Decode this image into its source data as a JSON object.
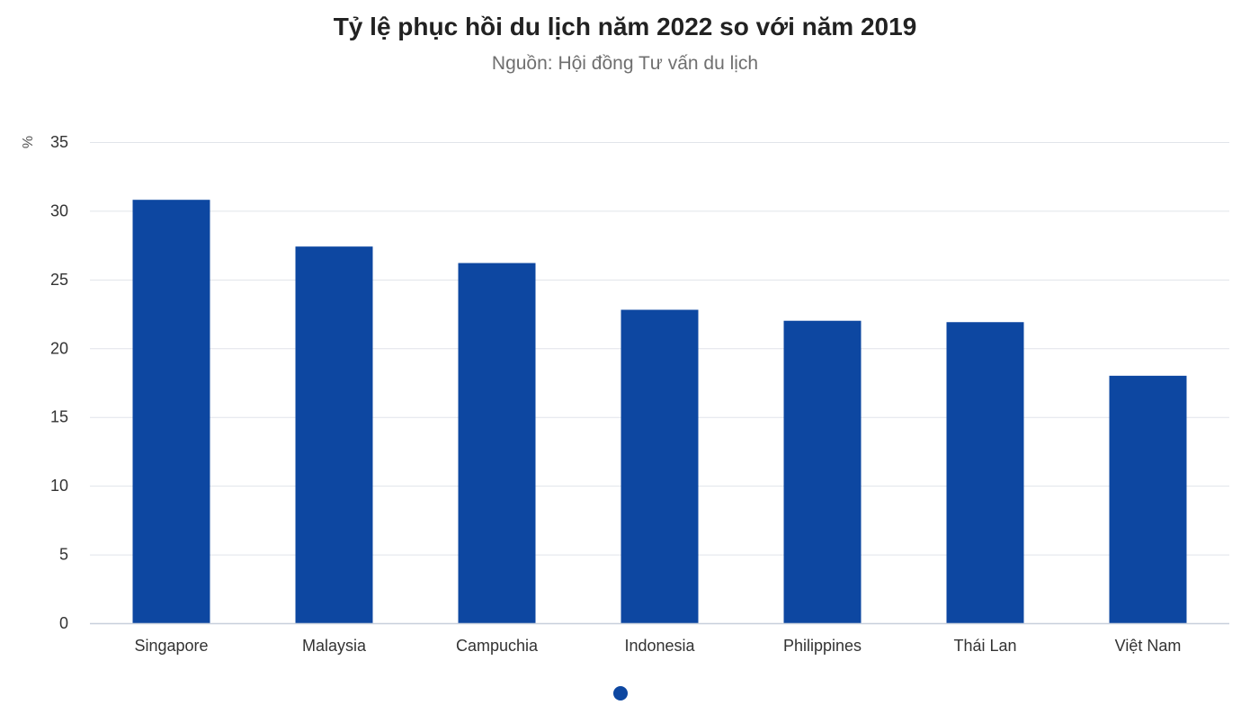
{
  "chart_data": {
    "type": "bar",
    "title": "Tỷ lệ phục hồi du lịch năm 2022 so với năm 2019",
    "subtitle": "Nguồn: Hội đồng Tư vấn du lịch",
    "ylabel": "%",
    "xlabel": "",
    "categories": [
      "Singapore",
      "Malaysia",
      "Campuchia",
      "Indonesia",
      "Philippines",
      "Thái Lan",
      "Việt Nam"
    ],
    "values": [
      30.8,
      27.4,
      26.2,
      22.8,
      22.0,
      21.9,
      18.0
    ],
    "ylim": [
      0,
      35
    ],
    "yticks": [
      "0",
      "5",
      "10",
      "15",
      "20",
      "25",
      "30",
      "35"
    ],
    "grid": true,
    "bar_color": "#0d47a1",
    "legend": "none"
  },
  "pager": {
    "active_color": "#0d47a1"
  }
}
